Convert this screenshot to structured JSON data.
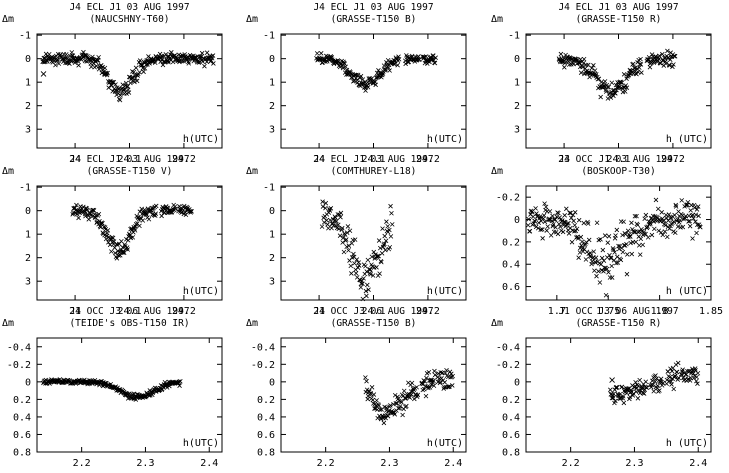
{
  "chart_data": [
    {
      "type": "scatter",
      "title": "J4 ECL J1 03 AUG 1997",
      "subtitle": "(NAUCSHNY-T60)",
      "xlabel": "h(UTC)",
      "ylabel": "Δm",
      "xlim": [
        23.93,
        24.27
      ],
      "ylim": [
        3.8,
        -1.05
      ],
      "inverted_y": true,
      "xticks": [
        {
          "v": 24,
          "label": "24"
        },
        {
          "v": 24.1,
          "label": "24.1"
        },
        {
          "v": 24.2,
          "label": "24.2"
        }
      ],
      "yticks": [
        {
          "v": -1,
          "label": "-1"
        },
        {
          "v": 0,
          "label": "0"
        },
        {
          "v": 1,
          "label": "1"
        },
        {
          "v": 2,
          "label": "2"
        },
        {
          "v": 3,
          "label": "3"
        }
      ],
      "segments": [
        [
          23.94,
          24.255
        ]
      ],
      "dip": {
        "center": 24.085,
        "width": 0.022,
        "depth": 1.45
      },
      "baseline": 0,
      "scatter": 0.12,
      "x": [
        23.94,
        23.97,
        24.0,
        24.03,
        24.06,
        24.07,
        24.08,
        24.085,
        24.09,
        24.1,
        24.11,
        24.13,
        24.16,
        24.2,
        24.25
      ],
      "y": [
        0,
        0,
        0,
        0.05,
        0.45,
        0.95,
        1.35,
        1.45,
        1.35,
        0.95,
        0.45,
        0.1,
        0,
        0,
        0
      ],
      "outliers": [
        {
          "x": 23.942,
          "y": 0.65
        }
      ]
    },
    {
      "type": "scatter",
      "title": "J4 ECL J1 03 AUG 1997",
      "subtitle": "(GRASSE-T150 B)",
      "xlabel": "h(UTC)",
      "ylabel": "Δm",
      "xlim": [
        23.93,
        24.27
      ],
      "ylim": [
        3.8,
        -1.05
      ],
      "inverted_y": true,
      "xticks": [
        {
          "v": 24,
          "label": "24"
        },
        {
          "v": 24.1,
          "label": "24.1"
        },
        {
          "v": 24.2,
          "label": "24.2"
        }
      ],
      "yticks": [
        {
          "v": -1,
          "label": "-1"
        },
        {
          "v": 0,
          "label": "0"
        },
        {
          "v": 1,
          "label": "1"
        },
        {
          "v": 2,
          "label": "2"
        },
        {
          "v": 3,
          "label": "3"
        }
      ],
      "segments": [
        [
          23.995,
          24.148
        ],
        [
          24.158,
          24.185
        ],
        [
          24.19,
          24.215
        ]
      ],
      "dip": {
        "center": 24.085,
        "width": 0.026,
        "depth": 1.1
      },
      "baseline": 0,
      "scatter": 0.09,
      "x": [
        24.0,
        24.03,
        24.05,
        24.07,
        24.085,
        24.1,
        24.12,
        24.14,
        24.17,
        24.2
      ],
      "y": [
        0,
        0.05,
        0.3,
        0.85,
        1.1,
        0.85,
        0.35,
        0.05,
        0,
        0
      ]
    },
    {
      "type": "scatter",
      "title": "J4 ECL J1 03 AUG 1997",
      "subtitle": "(GRASSE-T150 R)",
      "xlabel": "h (UTC)",
      "ylabel": "Δm",
      "xlim": [
        23.93,
        24.27
      ],
      "ylim": [
        3.8,
        -1.05
      ],
      "inverted_y": true,
      "xticks": [
        {
          "v": 24,
          "label": "24"
        },
        {
          "v": 24.1,
          "label": "24.1"
        },
        {
          "v": 24.2,
          "label": "24.2"
        }
      ],
      "yticks": [
        {
          "v": -1,
          "label": "-1"
        },
        {
          "v": 0,
          "label": "0"
        },
        {
          "v": 1,
          "label": "1"
        },
        {
          "v": 2,
          "label": "2"
        },
        {
          "v": 3,
          "label": "3"
        }
      ],
      "segments": [
        [
          23.99,
          24.143
        ],
        [
          24.152,
          24.178
        ],
        [
          24.18,
          24.205
        ]
      ],
      "dip": {
        "center": 24.088,
        "width": 0.028,
        "depth": 1.45
      },
      "baseline": 0,
      "scatter": 0.14,
      "x": [
        23.99,
        24.02,
        24.05,
        24.07,
        24.088,
        24.11,
        24.13,
        24.16,
        24.2
      ],
      "y": [
        -0.1,
        0.05,
        0.35,
        0.95,
        1.45,
        0.9,
        0.35,
        0.15,
        -0.05
      ]
    },
    {
      "type": "scatter",
      "title": "J4 ECL J1 03 AUG 1997",
      "subtitle": "(GRASSE-T150 V)",
      "xlabel": "h(UTC)",
      "ylabel": "Δm",
      "xlim": [
        23.93,
        24.27
      ],
      "ylim": [
        3.8,
        -1.05
      ],
      "inverted_y": true,
      "xticks": [
        {
          "v": 24,
          "label": "24"
        },
        {
          "v": 24.1,
          "label": "24.1"
        },
        {
          "v": 24.2,
          "label": "24.2"
        }
      ],
      "yticks": [
        {
          "v": -1,
          "label": "-1"
        },
        {
          "v": 0,
          "label": "0"
        },
        {
          "v": 1,
          "label": "1"
        },
        {
          "v": 2,
          "label": "2"
        },
        {
          "v": 3,
          "label": "3"
        }
      ],
      "segments": [
        [
          23.995,
          24.15
        ],
        [
          24.158,
          24.185
        ],
        [
          24.19,
          24.215
        ]
      ],
      "dip": {
        "center": 24.08,
        "width": 0.022,
        "depth": 1.7
      },
      "baseline": 0,
      "scatter": 0.12,
      "x": [
        24.0,
        24.03,
        24.05,
        24.07,
        24.08,
        24.09,
        24.11,
        24.14,
        24.17,
        24.2
      ],
      "y": [
        0,
        0.05,
        0.35,
        1.2,
        1.7,
        1.2,
        0.4,
        0.05,
        0,
        0
      ]
    },
    {
      "type": "scatter",
      "title": "J4 ECL J1 03 AUG 1997",
      "subtitle": "(COMTHUREY-L18)",
      "xlabel": "h(UTC)",
      "ylabel": "Δm",
      "xlim": [
        23.93,
        24.27
      ],
      "ylim": [
        3.8,
        -1.05
      ],
      "inverted_y": true,
      "xticks": [
        {
          "v": 24,
          "label": "24"
        },
        {
          "v": 24.1,
          "label": "24.1"
        },
        {
          "v": 24.2,
          "label": "24.2"
        }
      ],
      "yticks": [
        {
          "v": -1,
          "label": "-1"
        },
        {
          "v": 0,
          "label": "0"
        },
        {
          "v": 1,
          "label": "1"
        },
        {
          "v": 2,
          "label": "2"
        },
        {
          "v": 3,
          "label": "3"
        }
      ],
      "segments": [
        [
          24.005,
          24.135
        ]
      ],
      "dip": {
        "center": 24.085,
        "width": 0.028,
        "depth": 2.9
      },
      "baseline": 0,
      "scatter": 0.35,
      "x": [
        24.005,
        24.03,
        24.05,
        24.07,
        24.085,
        24.1,
        24.12,
        24.135
      ],
      "y": [
        -0.2,
        0.1,
        0.8,
        2.1,
        2.9,
        2.0,
        0.7,
        0.1
      ]
    },
    {
      "type": "scatter",
      "title": "J3 OCC J1 03 AUG 1997",
      "subtitle": "(BOSKOOP-T30)",
      "xlabel": "h (UTC)",
      "ylabel": "Δm",
      "xlim": [
        1.67,
        1.85
      ],
      "ylim": [
        0.72,
        -0.3
      ],
      "inverted_y": true,
      "xticks": [
        {
          "v": 1.7,
          "label": "1.7"
        },
        {
          "v": 1.75,
          "label": "1.75"
        },
        {
          "v": 1.8,
          "label": "1.8"
        },
        {
          "v": 1.85,
          "label": "1.85"
        }
      ],
      "yticks": [
        {
          "v": -0.2,
          "label": "-0.2"
        },
        {
          "v": 0,
          "label": "0"
        },
        {
          "v": 0.2,
          "label": "0.2"
        },
        {
          "v": 0.4,
          "label": "0.4"
        },
        {
          "v": 0.6,
          "label": "0.6"
        }
      ],
      "segments": [
        [
          1.672,
          1.84
        ]
      ],
      "dip": {
        "center": 1.748,
        "width": 0.02,
        "depth": 0.35
      },
      "baseline": 0,
      "scatter": 0.07,
      "x": [
        1.672,
        1.7,
        1.72,
        1.74,
        1.748,
        1.76,
        1.78,
        1.8,
        1.84
      ],
      "y": [
        0,
        0.02,
        0.1,
        0.3,
        0.35,
        0.28,
        0.1,
        0.02,
        0
      ]
    },
    {
      "type": "scatter",
      "title": "J1 OCC J3 06 AUG 1997",
      "subtitle": "(TEIDE's OBS-T150 IR)",
      "xlabel": "h(UTC)",
      "ylabel": "Δm",
      "xlim": [
        2.13,
        2.42
      ],
      "ylim": [
        0.8,
        -0.5
      ],
      "inverted_y": true,
      "xticks": [
        {
          "v": 2.2,
          "label": "2.2"
        },
        {
          "v": 2.3,
          "label": "2.3"
        },
        {
          "v": 2.4,
          "label": "2.4"
        }
      ],
      "yticks": [
        {
          "v": -0.4,
          "label": "-0.4"
        },
        {
          "v": -0.2,
          "label": "-0.2"
        },
        {
          "v": 0,
          "label": "0"
        },
        {
          "v": 0.2,
          "label": "0.2"
        },
        {
          "v": 0.4,
          "label": "0.4"
        },
        {
          "v": 0.6,
          "label": "0.6"
        },
        {
          "v": 0.8,
          "label": "0.8"
        }
      ],
      "segments": [
        [
          2.14,
          2.355
        ]
      ],
      "dip": {
        "center": 2.288,
        "width": 0.026,
        "depth": 0.17
      },
      "baseline": 0,
      "scatter": 0.012,
      "x": [
        2.14,
        2.2,
        2.25,
        2.27,
        2.288,
        2.31,
        2.33,
        2.355
      ],
      "y": [
        0,
        0,
        0.03,
        0.12,
        0.17,
        0.12,
        0.04,
        0
      ]
    },
    {
      "type": "scatter",
      "title": "J1 OCC J3 06 AUG 1997",
      "subtitle": "(GRASSE-T150 B)",
      "xlabel": "h(UTC)",
      "ylabel": "Δm",
      "xlim": [
        2.13,
        2.42
      ],
      "ylim": [
        0.8,
        -0.5
      ],
      "inverted_y": true,
      "xticks": [
        {
          "v": 2.2,
          "label": "2.2"
        },
        {
          "v": 2.3,
          "label": "2.3"
        },
        {
          "v": 2.4,
          "label": "2.4"
        }
      ],
      "yticks": [
        {
          "v": -0.4,
          "label": "-0.4"
        },
        {
          "v": -0.2,
          "label": "-0.2"
        },
        {
          "v": 0,
          "label": "0"
        },
        {
          "v": 0.2,
          "label": "0.2"
        },
        {
          "v": 0.4,
          "label": "0.4"
        },
        {
          "v": 0.6,
          "label": "0.6"
        },
        {
          "v": 0.8,
          "label": "0.8"
        }
      ],
      "segments": [
        [
          2.262,
          2.345
        ],
        [
          2.35,
          2.372
        ],
        [
          2.375,
          2.4
        ]
      ],
      "trend": [
        [
          2.262,
          0.05
        ],
        [
          2.29,
          0.38
        ],
        [
          2.34,
          0.1
        ],
        [
          2.37,
          0.0
        ],
        [
          2.4,
          -0.05
        ]
      ],
      "scatter": 0.06,
      "x": [
        2.262,
        2.29,
        2.34,
        2.37,
        2.4
      ],
      "y": [
        0.05,
        0.38,
        0.1,
        0.0,
        -0.05
      ]
    },
    {
      "type": "scatter",
      "title": "J1 OCC J3 06 AUG 1997",
      "subtitle": "(GRASSE-T150 R)",
      "xlabel": "h (UTC)",
      "ylabel": "Δm",
      "xlim": [
        2.13,
        2.42
      ],
      "ylim": [
        0.8,
        -0.5
      ],
      "inverted_y": true,
      "xticks": [
        {
          "v": 2.2,
          "label": "2.2"
        },
        {
          "v": 2.3,
          "label": "2.3"
        },
        {
          "v": 2.4,
          "label": "2.4"
        }
      ],
      "yticks": [
        {
          "v": -0.4,
          "label": "-0.4"
        },
        {
          "v": -0.2,
          "label": "-0.2"
        },
        {
          "v": 0,
          "label": "0"
        },
        {
          "v": 0.2,
          "label": "0.2"
        },
        {
          "v": 0.4,
          "label": "0.4"
        },
        {
          "v": 0.6,
          "label": "0.6"
        },
        {
          "v": 0.8,
          "label": "0.8"
        }
      ],
      "segments": [
        [
          2.262,
          2.32
        ],
        [
          2.325,
          2.345
        ],
        [
          2.35,
          2.37
        ],
        [
          2.373,
          2.4
        ]
      ],
      "trend": [
        [
          2.262,
          0.15
        ],
        [
          2.3,
          0.1
        ],
        [
          2.33,
          0.03
        ],
        [
          2.36,
          -0.05
        ],
        [
          2.39,
          -0.1
        ],
        [
          2.4,
          -0.08
        ]
      ],
      "scatter": 0.06,
      "x": [
        2.262,
        2.3,
        2.33,
        2.36,
        2.39,
        2.4
      ],
      "y": [
        0.15,
        0.1,
        0.03,
        -0.05,
        -0.1,
        -0.08
      ],
      "outliers": [
        {
          "x": 2.265,
          "y": -0.02
        }
      ]
    }
  ]
}
